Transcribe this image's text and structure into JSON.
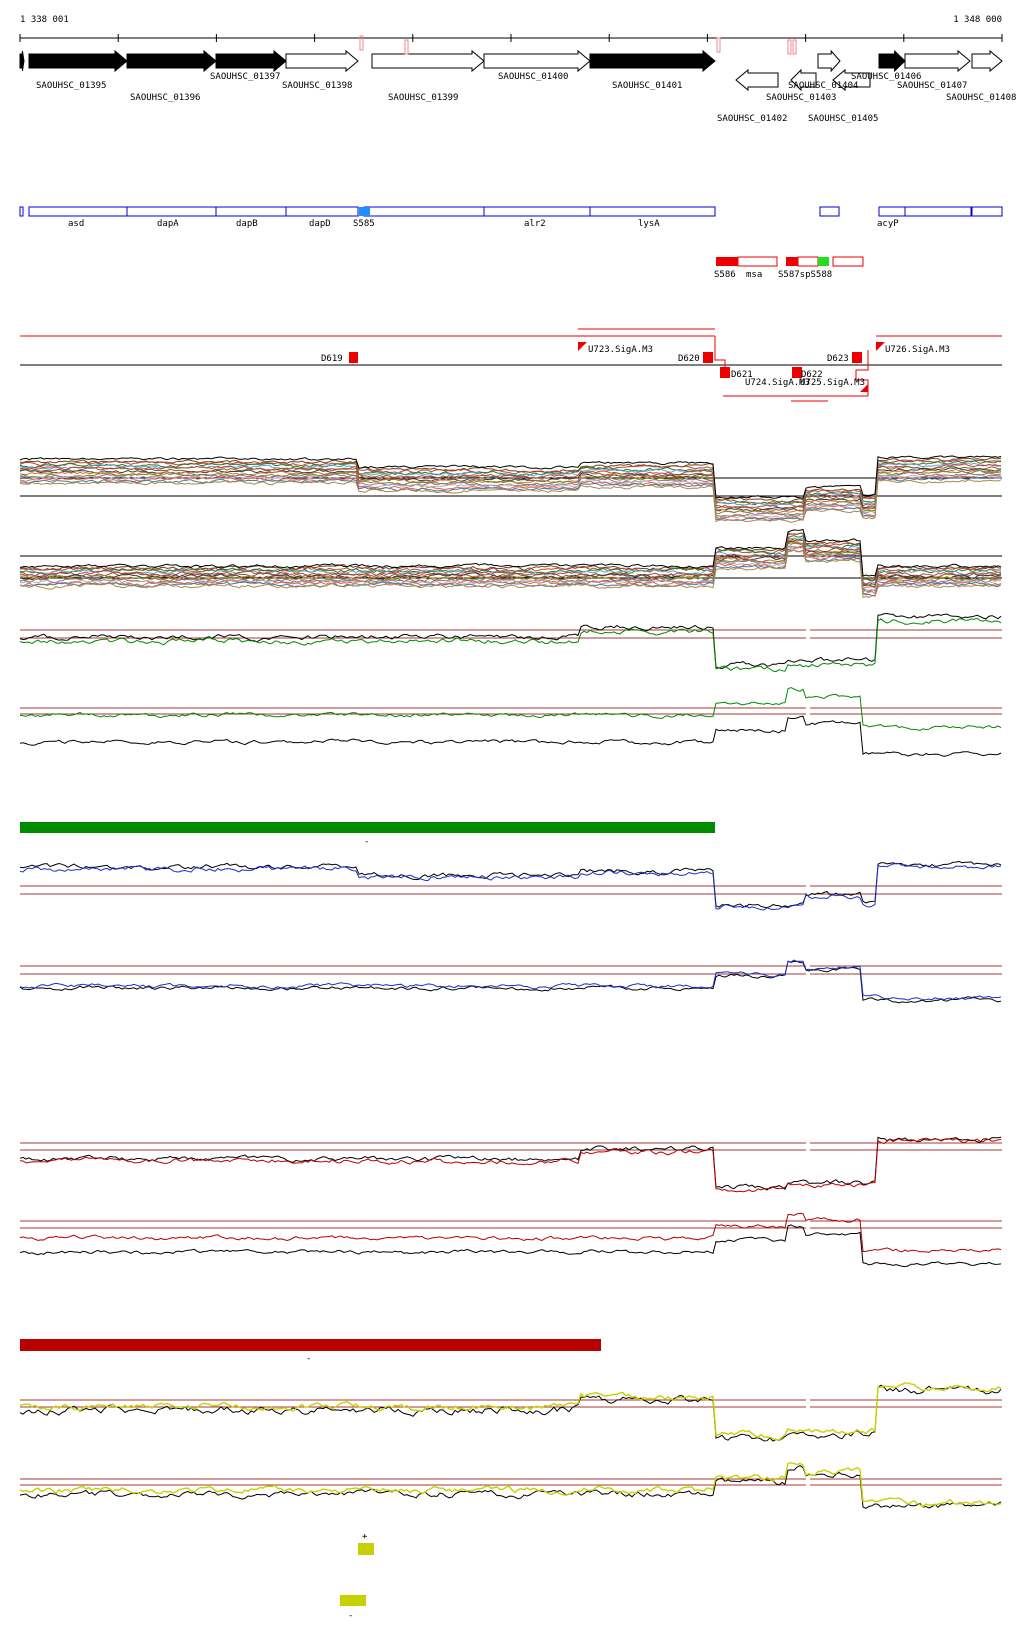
{
  "coordinates": {
    "start": "1 338 001",
    "end": "1 348 000"
  },
  "gene_labels": [
    "SAOUHSC_01395",
    "SAOUHSC_01396",
    "SAOUHSC_01397",
    "SAOUHSC_01398",
    "SAOUHSC_01399",
    "SAOUHSC_01400",
    "SAOUHSC_01401",
    "SAOUHSC_01402",
    "SAOUHSC_01403",
    "SAOUHSC_01404",
    "SAOUHSC_01405",
    "SAOUHSC_01406",
    "SAOUHSC_01407",
    "SAOUHSC_01408"
  ],
  "annotation_labels": [
    "asd",
    "dapA",
    "dapB",
    "dapD",
    "S585",
    "alr2",
    "lysA",
    "acyP"
  ],
  "srna_labels": [
    "S586",
    "msa",
    "S587",
    "S588"
  ],
  "srna_overlap_label": "S587spS588",
  "region_labels": [
    "D619",
    "D620",
    "D621",
    "D622",
    "D623",
    "U723.SigA.M3",
    "U724.SigA.M3",
    "U725.SigA.M3",
    "U726.SigA.M3"
  ],
  "strand_marks": {
    "green": "-",
    "red": "-",
    "yellow_plus": "+",
    "yellow_minus": "-"
  },
  "colors": {
    "gene_forward_filled": "#000000",
    "annotation_blue": "#0000cc",
    "srna_red": "#ee0000",
    "srna_green": "#22dd22",
    "condition_green": "#008a00",
    "condition_blue": "#1a2ecc",
    "condition_red": "#b80000",
    "condition_yellow": "#c8d100",
    "threshold_line": "#a33a3a"
  }
}
